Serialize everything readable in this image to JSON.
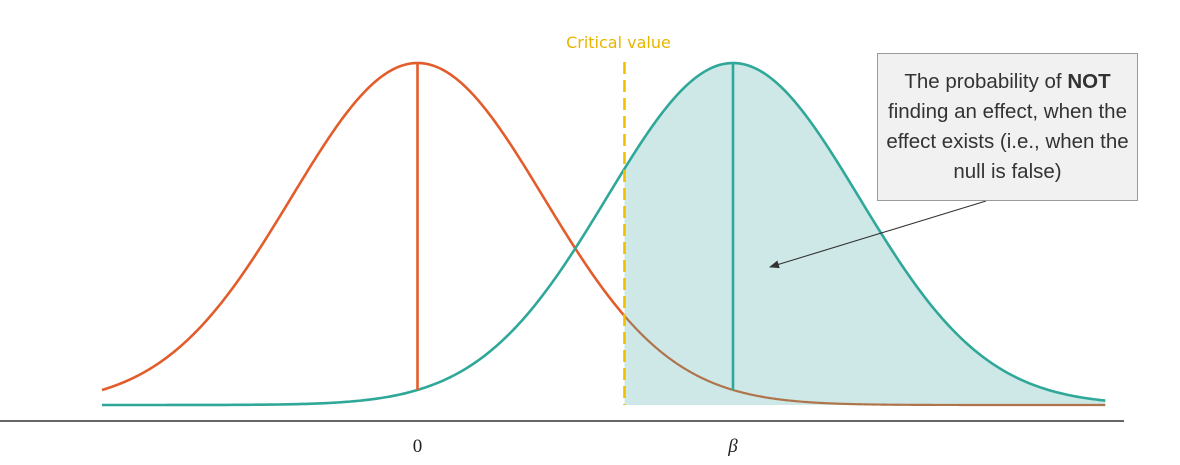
{
  "critical_value_label": "Critical value",
  "tick_labels": {
    "null_mean": "0",
    "alt_mean": "β"
  },
  "callout": {
    "text_before": "The probability of ",
    "text_bold": "NOT",
    "text_after": " finding an effect, when the effect exists (i.e., when the null is false)"
  },
  "colors": {
    "null_curve": "#e35d2c",
    "alt_curve": "#2fa89a",
    "alt_fill": "#cde8e6",
    "critical_line": "#f0c000",
    "critical_label": "#e8b400",
    "axis": "#333333",
    "overlap_line": "#b0744c"
  },
  "chart_data": {
    "type": "area",
    "series": [
      {
        "name": "",
        "mean": 0,
        "sd": 1
      },
      {
        "name": "",
        "mean": 2.5,
        "sd": 1
      }
    ],
    "critical_value": 1.64,
    "shaded_region": "alternative distribution right of critical value",
    "xlim": [
      -2.5,
      5.45
    ],
    "x_ticks": [
      0,
      2.5
    ]
  }
}
